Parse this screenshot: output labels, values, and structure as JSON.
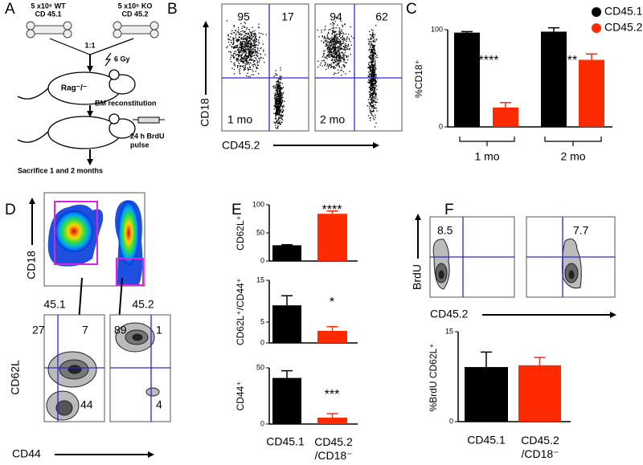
{
  "panel_labels": [
    "A",
    "B",
    "C",
    "D",
    "E",
    "F"
  ],
  "schematic": {
    "donor_wt": [
      "5 x10⁶ WT",
      "CD 45.1"
    ],
    "donor_ko": [
      "5 x10⁶ KO",
      "CD 45.2"
    ],
    "ratio": "1:1",
    "irradiation": "6 Gy",
    "recipient": "Rag⁻/⁻",
    "step1": "BM reconstitution",
    "step2": [
      "24 h BrdU",
      "pulse"
    ],
    "endpoint": "Sacrifice 1 and 2 months"
  },
  "flow_b": {
    "y_label": "CD18",
    "x_label": "CD45.2",
    "plots": [
      {
        "quadrants": [
          95,
          17
        ],
        "label": "1 mo"
      },
      {
        "quadrants": [
          94,
          62
        ],
        "label": "2 mo"
      }
    ]
  },
  "flow_d": {
    "y_label": "CD18",
    "gates": [
      "45.1",
      "45.2"
    ],
    "lower_y_label": "CD62L",
    "lower_x_label": "CD44",
    "plots": [
      {
        "quadrants": [
          27,
          7,
          44
        ]
      },
      {
        "quadrants": [
          89,
          1,
          4
        ]
      }
    ]
  },
  "flow_f": {
    "y_label": "BrdU",
    "x_label": "CD45.2",
    "plots": [
      {
        "quadrants": [
          8.5
        ]
      },
      {
        "quadrants": [
          7.7
        ]
      }
    ]
  },
  "chart_data": [
    {
      "type": "bar",
      "y_label": "%CD18⁺",
      "categories": [
        "1 mo",
        "2 mo"
      ],
      "series": [
        {
          "name": "CD45.1",
          "color": "#000000",
          "values": [
            97,
            98
          ],
          "errors": [
            1,
            4
          ]
        },
        {
          "name": "CD45.2",
          "color": "#ff2a00",
          "values": [
            20,
            69
          ],
          "errors": [
            5,
            6
          ]
        }
      ],
      "annotations": [
        "****",
        "**"
      ],
      "ylim": [
        0,
        100
      ],
      "yticks": [
        0,
        100
      ]
    },
    {
      "type": "bar",
      "y_label": "CD62L⁺",
      "values": [
        28,
        84
      ],
      "errors": [
        1,
        5
      ],
      "colors": [
        "#000000",
        "#ff2a00"
      ],
      "annotations": [
        "****"
      ],
      "ylim": [
        0,
        100
      ],
      "yticks": [
        0,
        50,
        100
      ]
    },
    {
      "type": "bar",
      "y_label": "CD62L⁺/CD44⁺",
      "values": [
        9,
        2.9
      ],
      "errors": [
        2.3,
        1
      ],
      "colors": [
        "#000000",
        "#ff2a00"
      ],
      "annotations": [
        "*"
      ],
      "ylim": [
        0,
        15
      ],
      "yticks": [
        0,
        5,
        15
      ]
    },
    {
      "type": "bar",
      "y_label": "CD44⁺",
      "categories": [
        "CD45.1",
        "CD45.2 /CD18⁻"
      ],
      "values": [
        41,
        5.7
      ],
      "errors": [
        6.4,
        3.5
      ],
      "colors": [
        "#000000",
        "#ff2a00"
      ],
      "annotations": [
        "***"
      ],
      "ylim": [
        0,
        50
      ],
      "yticks": [
        0,
        50
      ]
    },
    {
      "type": "bar",
      "y_label": "%BrdU CD62L⁺",
      "categories": [
        "CD45.1",
        "CD45.2 /CD18⁻"
      ],
      "values": [
        9.1,
        9.4
      ],
      "errors": [
        2.5,
        1.3
      ],
      "colors": [
        "#000000",
        "#ff2a00"
      ],
      "ylim": [
        0,
        15
      ],
      "yticks": [
        0,
        15
      ]
    }
  ]
}
